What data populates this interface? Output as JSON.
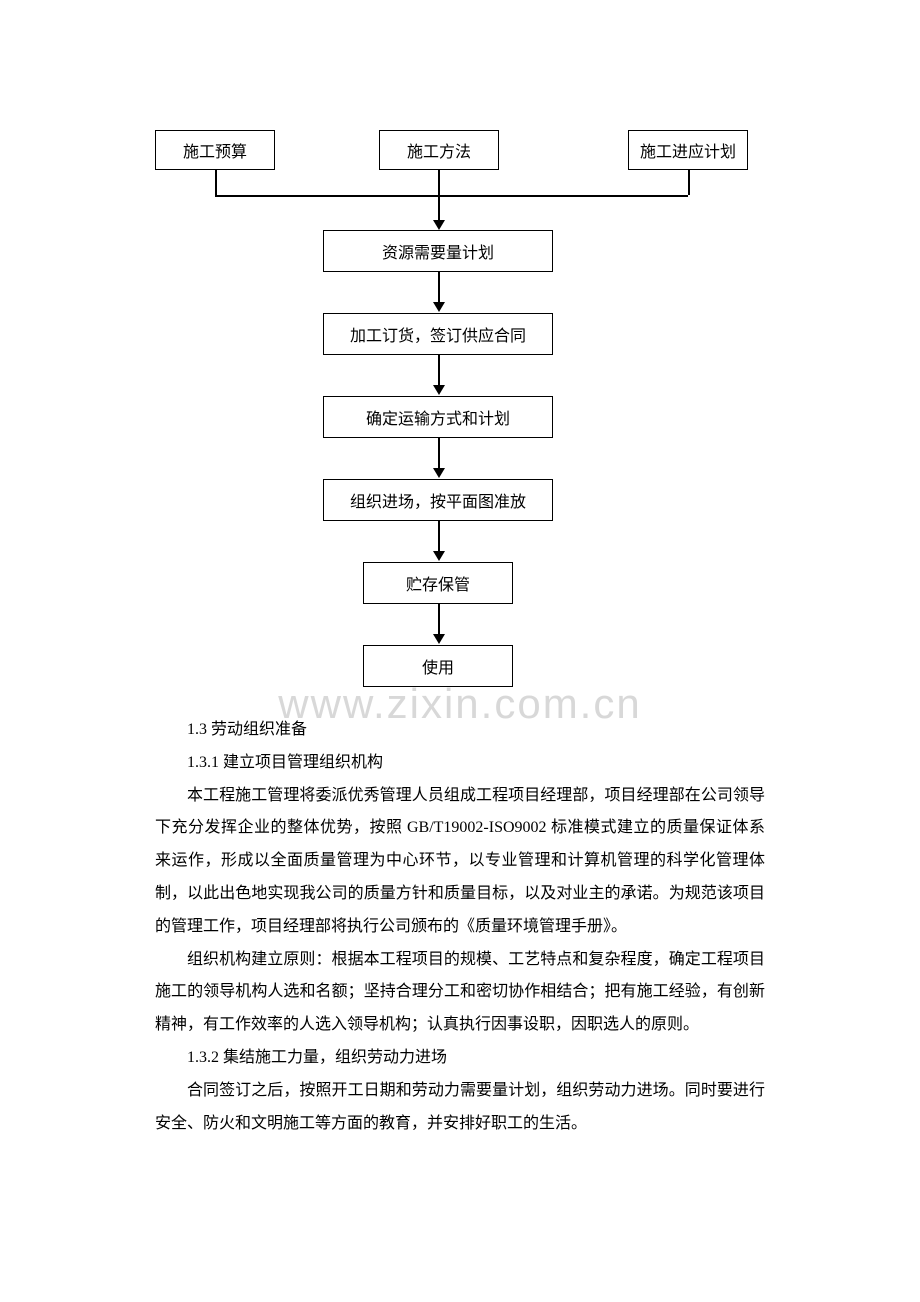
{
  "flowchart": {
    "type": "flowchart",
    "top_nodes": [
      "施工预算",
      "施工方法",
      "施工进应计划"
    ],
    "flow_nodes": [
      "资源需要量计划",
      "加工订货，签订供应合同",
      "确定运输方式和计划",
      "组织进场，按平面图准放",
      "贮存保管",
      "使用"
    ],
    "border_color": "#000000",
    "background_color": "#ffffff",
    "font_size": 16,
    "node_heights": 42,
    "arrow_color": "#000000"
  },
  "watermark": {
    "text": "www.zixin.com.cn",
    "color": "#d8d8d8",
    "font_size": 42
  },
  "document": {
    "section_1_3": "1.3 劳动组织准备",
    "section_1_3_1": "1.3.1 建立项目管理组织机构",
    "para_1": "本工程施工管理将委派优秀管理人员组成工程项目经理部，项目经理部在公司领导下充分发挥企业的整体优势，按照 GB/T19002-ISO9002 标准模式建立的质量保证体系来运作，形成以全面质量管理为中心环节，以专业管理和计算机管理的科学化管理体制，以此出色地实现我公司的质量方针和质量目标，以及对业主的承诺。为规范该项目的管理工作，项目经理部将执行公司颁布的《质量环境管理手册》。",
    "para_2": "组织机构建立原则：根据本工程项目的规模、工艺特点和复杂程度，确定工程项目施工的领导机构人选和名额；坚持合理分工和密切协作相结合；把有施工经验，有创新精神，有工作效率的人选入领导机构；认真执行因事设职，因职选人的原则。",
    "section_1_3_2": "1.3.2 集结施工力量，组织劳动力进场",
    "para_3": "合同签订之后，按照开工日期和劳动力需要量计划，组织劳动力进场。同时要进行安全、防火和文明施工等方面的教育，并安排好职工的生活。",
    "font_size": 16,
    "line_height": 2.05,
    "text_color": "#000000"
  }
}
